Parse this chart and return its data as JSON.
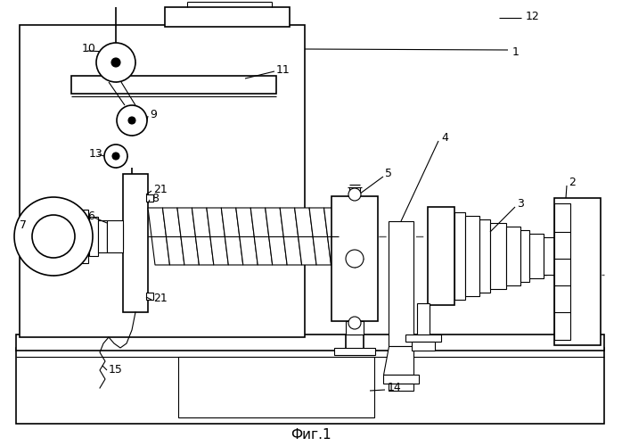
{
  "title": "Фиг.1",
  "bg_color": "#ffffff",
  "lw": 1.2,
  "lw_thin": 0.8,
  "fig_width": 6.98,
  "fig_height": 5.0
}
